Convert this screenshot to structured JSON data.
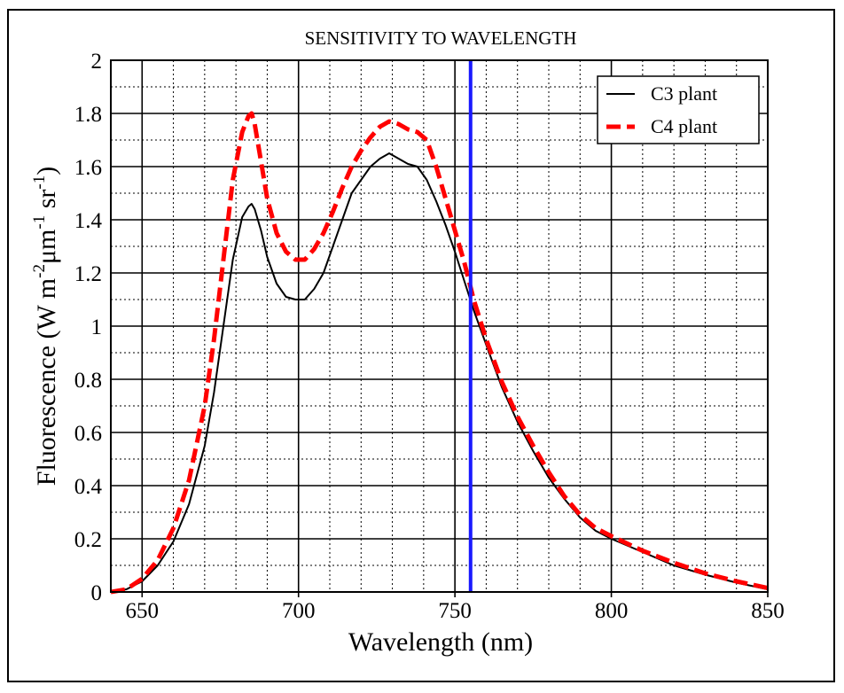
{
  "chart_data": {
    "type": "line",
    "title": "SENSITIVITY TO WAVELENGTH",
    "xlabel": "Wavelength (nm)",
    "ylabel": {
      "main": "Fluorescence (W m",
      "sup1": "-2",
      "mid1": "μm",
      "sup2": "-1",
      "mid2": " sr",
      "sup3": "-1",
      "end": ")"
    },
    "xlim": [
      640,
      850
    ],
    "ylim": [
      0,
      2
    ],
    "x_major_ticks": [
      650,
      700,
      750,
      800,
      850
    ],
    "x_tick_labels": [
      "650",
      "700",
      "750",
      "800",
      "850"
    ],
    "y_major_ticks": [
      0,
      0.2,
      0.4,
      0.6,
      0.8,
      1,
      1.2,
      1.4,
      1.6,
      1.8,
      2
    ],
    "y_tick_labels": [
      "0",
      "0.2",
      "0.4",
      "0.6",
      "0.8",
      "1",
      "1.2",
      "1.4",
      "1.6",
      "1.8",
      "2"
    ],
    "x_minor_ticks": [
      660,
      670,
      680,
      690,
      710,
      720,
      730,
      740,
      760,
      770,
      780,
      790,
      810,
      820,
      830,
      840
    ],
    "y_minor_ticks": [
      0.1,
      0.3,
      0.5,
      0.7,
      0.9,
      1.1,
      1.3,
      1.5,
      1.7,
      1.9
    ],
    "grid": "major solid, minor dotted",
    "legend_position": "top-right",
    "vertical_marker": {
      "x": 755,
      "color": "#1a1aff"
    },
    "series": [
      {
        "name": "C3 plant",
        "color": "#000000",
        "style": "solid",
        "x": [
          640,
          645,
          650,
          655,
          660,
          665,
          670,
          673,
          676,
          679,
          682,
          684,
          685,
          686,
          688,
          690,
          693,
          696,
          699,
          702,
          705,
          708,
          711,
          714,
          717,
          720,
          723,
          726,
          729,
          732,
          735,
          738,
          741,
          744,
          747,
          750,
          753,
          756,
          760,
          765,
          770,
          775,
          780,
          785,
          790,
          795,
          800,
          810,
          820,
          830,
          840,
          850
        ],
        "y": [
          0.0,
          0.01,
          0.04,
          0.1,
          0.19,
          0.33,
          0.55,
          0.75,
          1.0,
          1.25,
          1.41,
          1.45,
          1.46,
          1.44,
          1.36,
          1.26,
          1.16,
          1.11,
          1.1,
          1.1,
          1.14,
          1.2,
          1.3,
          1.4,
          1.5,
          1.55,
          1.6,
          1.63,
          1.65,
          1.63,
          1.61,
          1.6,
          1.55,
          1.47,
          1.38,
          1.28,
          1.17,
          1.06,
          0.93,
          0.77,
          0.64,
          0.53,
          0.43,
          0.35,
          0.28,
          0.23,
          0.2,
          0.15,
          0.1,
          0.065,
          0.035,
          0.01
        ]
      },
      {
        "name": "C4 plant",
        "color": "#ff0000",
        "style": "dashed",
        "x": [
          640,
          645,
          650,
          655,
          660,
          665,
          670,
          673,
          676,
          679,
          682,
          684,
          685,
          686,
          688,
          690,
          693,
          696,
          699,
          702,
          705,
          708,
          711,
          714,
          717,
          720,
          723,
          726,
          729,
          732,
          735,
          738,
          741,
          744,
          747,
          750,
          753,
          756,
          760,
          765,
          770,
          775,
          780,
          785,
          790,
          795,
          800,
          810,
          820,
          830,
          840,
          850
        ],
        "y": [
          0.0,
          0.01,
          0.05,
          0.12,
          0.24,
          0.42,
          0.7,
          0.95,
          1.25,
          1.55,
          1.73,
          1.79,
          1.8,
          1.76,
          1.62,
          1.48,
          1.35,
          1.28,
          1.25,
          1.25,
          1.29,
          1.35,
          1.43,
          1.52,
          1.6,
          1.66,
          1.71,
          1.75,
          1.77,
          1.76,
          1.74,
          1.73,
          1.7,
          1.6,
          1.48,
          1.36,
          1.24,
          1.1,
          0.95,
          0.79,
          0.66,
          0.55,
          0.45,
          0.36,
          0.29,
          0.24,
          0.21,
          0.155,
          0.11,
          0.07,
          0.04,
          0.015
        ]
      }
    ]
  }
}
